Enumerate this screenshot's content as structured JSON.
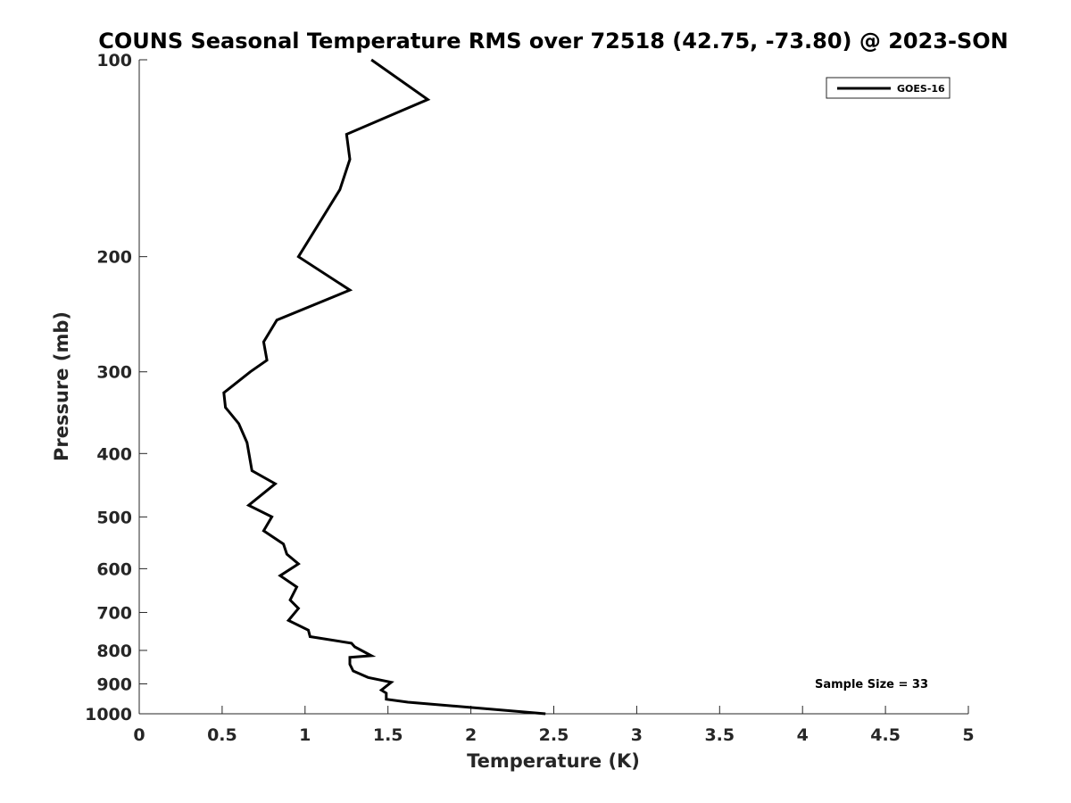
{
  "chart_data": {
    "type": "line",
    "title": "COUNS Seasonal Temperature RMS over 72518 (42.75, -73.80) @ 2023-SON",
    "xlabel": "Temperature (K)",
    "ylabel": "Pressure (mb)",
    "xlim": [
      0,
      5
    ],
    "ylim": [
      100,
      1000
    ],
    "y_scale": "log",
    "y_reversed": true,
    "x_ticks": [
      "0",
      "0.5",
      "1",
      "1.5",
      "2",
      "2.5",
      "3",
      "3.5",
      "4",
      "4.5",
      "5"
    ],
    "y_ticks": [
      "100",
      "200",
      "300",
      "400",
      "500",
      "600",
      "700",
      "800",
      "900",
      "1000"
    ],
    "grid": false,
    "legend_position": "top-right",
    "annotation": "Sample Size = 33",
    "series": [
      {
        "name": "GOES-16",
        "color": "#000000",
        "x": [
          1.4,
          1.74,
          1.25,
          1.27,
          1.21,
          0.96,
          1.27,
          0.83,
          0.75,
          0.77,
          0.67,
          0.51,
          0.52,
          0.6,
          0.65,
          0.68,
          0.82,
          0.66,
          0.8,
          0.75,
          0.87,
          0.89,
          0.96,
          0.85,
          0.95,
          0.91,
          0.96,
          0.9,
          1.02,
          1.03,
          1.28,
          1.3,
          1.4,
          1.27,
          1.27,
          1.29,
          1.38,
          1.52,
          1.46,
          1.49,
          1.49,
          1.62,
          2.45
        ],
        "y": [
          100,
          115,
          130,
          142,
          158,
          200,
          225,
          250,
          270,
          288,
          300,
          323,
          340,
          360,
          385,
          425,
          445,
          480,
          500,
          525,
          550,
          570,
          590,
          615,
          640,
          670,
          690,
          720,
          745,
          762,
          780,
          790,
          815,
          820,
          840,
          860,
          880,
          895,
          920,
          930,
          950,
          960,
          1000
        ]
      }
    ]
  }
}
